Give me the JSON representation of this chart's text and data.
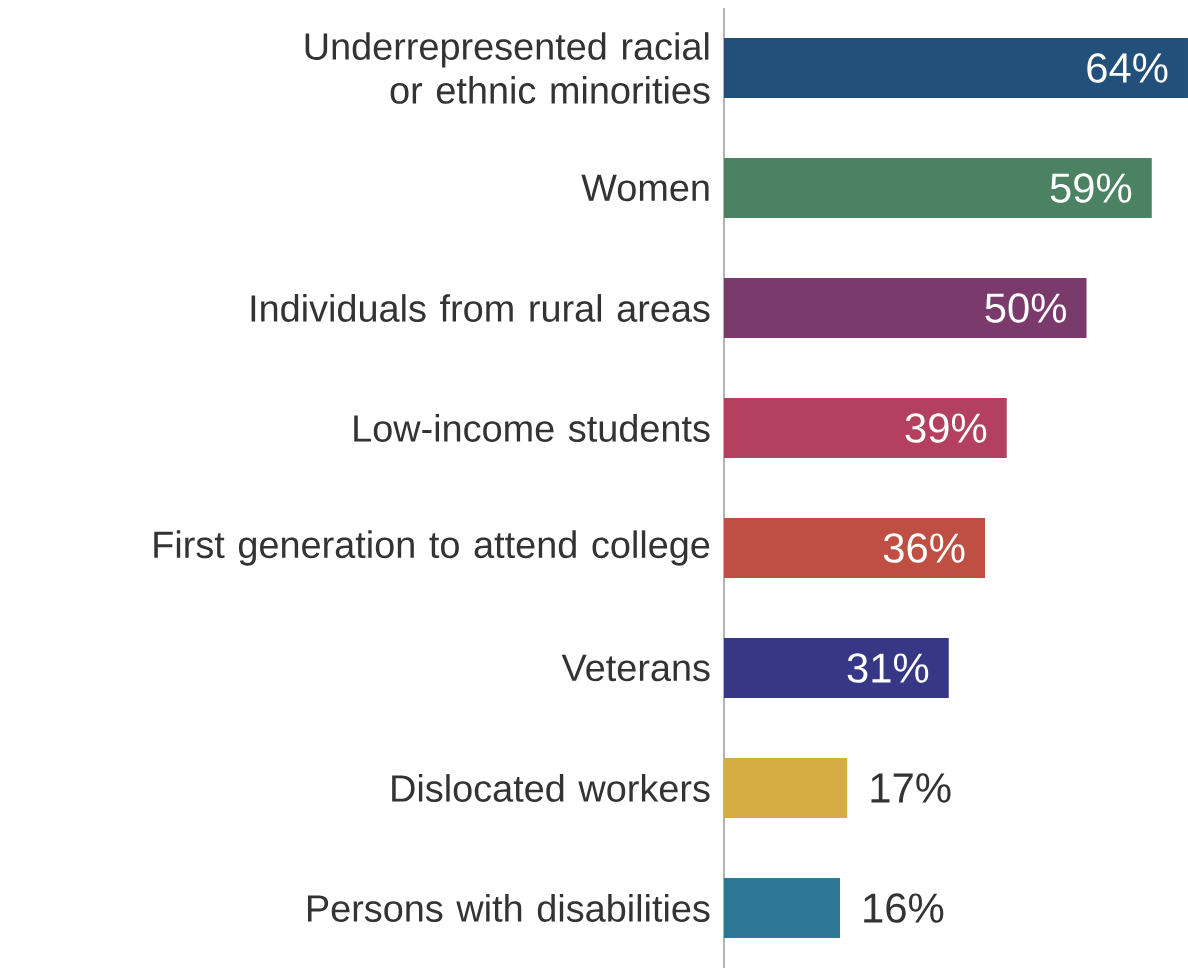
{
  "chart_data": {
    "type": "bar",
    "orientation": "horizontal",
    "categories": [
      "Underrepresented racial or ethnic minorities",
      "Women",
      "Individuals from rural areas",
      "Low-income students",
      "First generation to attend college",
      "Veterans",
      "Dislocated workers",
      "Persons with disabilities"
    ],
    "values": [
      64,
      59,
      50,
      39,
      36,
      31,
      17,
      16
    ],
    "value_labels": [
      "64%",
      "59%",
      "50%",
      "39%",
      "36%",
      "31%",
      "17%",
      "16%"
    ],
    "colors": [
      "#22507a",
      "#4a8262",
      "#7a3a6c",
      "#b4405f",
      "#bf4f43",
      "#363886",
      "#d6ad42",
      "#2f7895"
    ]
  }
}
